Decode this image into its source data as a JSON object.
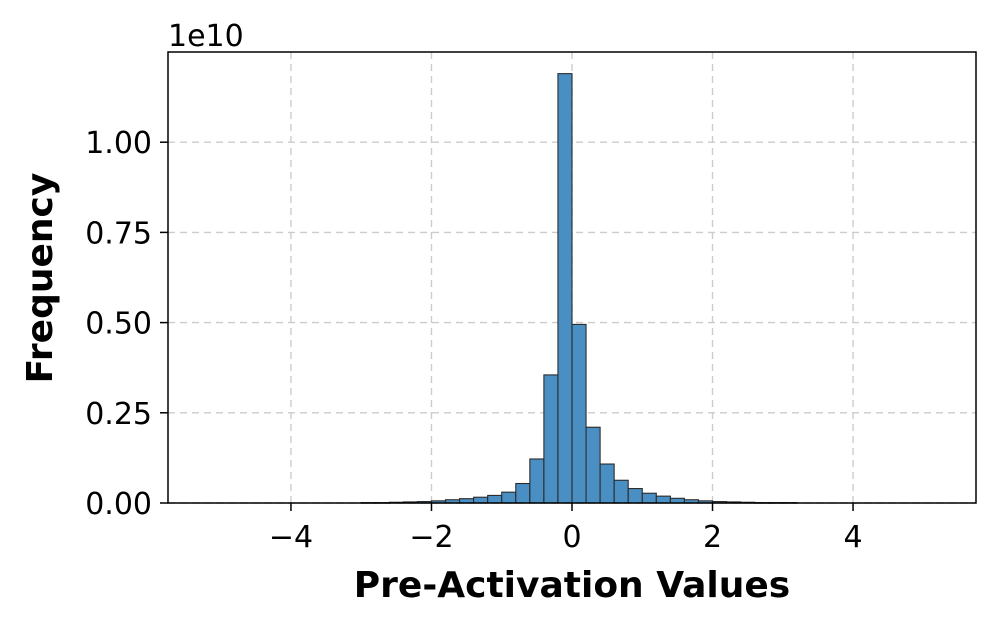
{
  "chart_data": {
    "type": "bar",
    "title": "",
    "xlabel": "Pre-Activation Values",
    "ylabel": "Frequency",
    "y_offset_label": "1e10",
    "xlim": [
      -5.75,
      5.75
    ],
    "ylim": [
      0,
      1.25
    ],
    "x_ticks": [
      -4,
      -2,
      0,
      2,
      4
    ],
    "x_tick_labels": [
      "−4",
      "−2",
      "0",
      "2",
      "4"
    ],
    "y_ticks": [
      0.0,
      0.25,
      0.5,
      0.75,
      1.0
    ],
    "y_tick_labels": [
      "0.00",
      "0.25",
      "0.50",
      "0.75",
      "1.00"
    ],
    "grid": true,
    "bar_color": "#4a8fc4",
    "edge_color": "#2b2b2b",
    "bin_width": 0.2,
    "bin_starts": [
      -3.0,
      -2.8,
      -2.6,
      -2.4,
      -2.2,
      -2.0,
      -1.8,
      -1.6,
      -1.4,
      -1.2,
      -1.0,
      -0.8,
      -0.6,
      -0.4,
      -0.2,
      0.0,
      0.2,
      0.4,
      0.6,
      0.8,
      1.0,
      1.2,
      1.4,
      1.6,
      1.8,
      2.0,
      2.2,
      2.4,
      2.6,
      2.8,
      3.0
    ],
    "values": [
      0.001,
      0.001,
      0.002,
      0.003,
      0.004,
      0.006,
      0.009,
      0.012,
      0.016,
      0.021,
      0.03,
      0.054,
      0.122,
      0.355,
      1.19,
      0.495,
      0.21,
      0.108,
      0.063,
      0.04,
      0.027,
      0.019,
      0.013,
      0.009,
      0.006,
      0.004,
      0.003,
      0.002,
      0.001,
      0.001,
      0.001
    ]
  }
}
